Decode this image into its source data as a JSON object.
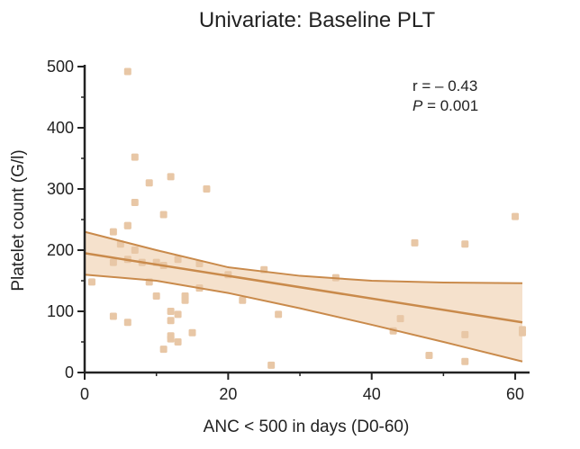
{
  "chart_data": {
    "type": "scatter",
    "title": "Univariate: Baseline PLT",
    "xlabel": "ANC < 500 in days (D0-60)",
    "ylabel": "Platelet count (G/l)",
    "xlim": [
      0,
      62
    ],
    "ylim": [
      0,
      500
    ],
    "xticks": [
      0,
      20,
      40,
      60
    ],
    "yticks": [
      0,
      100,
      200,
      300,
      400,
      500
    ],
    "annotation": {
      "r_label": "r = – 0.43",
      "p_letter": "P",
      "p_rest": " = 0.001"
    },
    "colors": {
      "points": "#e8c7a6",
      "band": "#f5e1cc",
      "line": "#c98a4b",
      "axis": "#222222"
    },
    "points": [
      {
        "x": 1,
        "y": 148
      },
      {
        "x": 4,
        "y": 180
      },
      {
        "x": 4,
        "y": 230
      },
      {
        "x": 4,
        "y": 92
      },
      {
        "x": 5,
        "y": 210
      },
      {
        "x": 6,
        "y": 492
      },
      {
        "x": 6,
        "y": 240
      },
      {
        "x": 6,
        "y": 240
      },
      {
        "x": 6,
        "y": 185
      },
      {
        "x": 6,
        "y": 82
      },
      {
        "x": 7,
        "y": 352
      },
      {
        "x": 7,
        "y": 278
      },
      {
        "x": 7,
        "y": 200
      },
      {
        "x": 8,
        "y": 180
      },
      {
        "x": 9,
        "y": 310
      },
      {
        "x": 9,
        "y": 148
      },
      {
        "x": 10,
        "y": 125
      },
      {
        "x": 10,
        "y": 180
      },
      {
        "x": 11,
        "y": 258
      },
      {
        "x": 11,
        "y": 175
      },
      {
        "x": 11,
        "y": 38
      },
      {
        "x": 12,
        "y": 320
      },
      {
        "x": 12,
        "y": 100
      },
      {
        "x": 12,
        "y": 85
      },
      {
        "x": 12,
        "y": 60
      },
      {
        "x": 12,
        "y": 55
      },
      {
        "x": 13,
        "y": 185
      },
      {
        "x": 13,
        "y": 95
      },
      {
        "x": 13,
        "y": 50
      },
      {
        "x": 14,
        "y": 125
      },
      {
        "x": 14,
        "y": 118
      },
      {
        "x": 15,
        "y": 65
      },
      {
        "x": 16,
        "y": 178
      },
      {
        "x": 16,
        "y": 138
      },
      {
        "x": 17,
        "y": 300
      },
      {
        "x": 20,
        "y": 160
      },
      {
        "x": 22,
        "y": 118
      },
      {
        "x": 25,
        "y": 168
      },
      {
        "x": 26,
        "y": 12
      },
      {
        "x": 27,
        "y": 95
      },
      {
        "x": 35,
        "y": 155
      },
      {
        "x": 43,
        "y": 68
      },
      {
        "x": 44,
        "y": 88
      },
      {
        "x": 46,
        "y": 212
      },
      {
        "x": 48,
        "y": 28
      },
      {
        "x": 53,
        "y": 210
      },
      {
        "x": 53,
        "y": 62
      },
      {
        "x": 53,
        "y": 18
      },
      {
        "x": 60,
        "y": 255
      },
      {
        "x": 61,
        "y": 70
      },
      {
        "x": 61,
        "y": 65
      }
    ],
    "regression": {
      "fit": [
        [
          0,
          195
        ],
        [
          61,
          82
        ]
      ],
      "ci_upper": [
        [
          0,
          230
        ],
        [
          10,
          200
        ],
        [
          20,
          172
        ],
        [
          30,
          158
        ],
        [
          40,
          150
        ],
        [
          50,
          147
        ],
        [
          61,
          146
        ]
      ],
      "ci_lower": [
        [
          0,
          160
        ],
        [
          10,
          150
        ],
        [
          20,
          130
        ],
        [
          30,
          105
        ],
        [
          40,
          78
        ],
        [
          50,
          50
        ],
        [
          61,
          18
        ]
      ]
    }
  }
}
